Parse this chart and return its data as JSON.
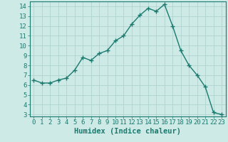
{
  "x": [
    0,
    1,
    2,
    3,
    4,
    5,
    6,
    7,
    8,
    9,
    10,
    11,
    12,
    13,
    14,
    15,
    16,
    17,
    18,
    19,
    20,
    21,
    22,
    23
  ],
  "y": [
    6.5,
    6.2,
    6.2,
    6.5,
    6.7,
    7.5,
    8.8,
    8.5,
    9.2,
    9.5,
    10.5,
    11.0,
    12.2,
    13.1,
    13.8,
    13.5,
    14.2,
    12.0,
    9.5,
    8.0,
    7.0,
    5.8,
    3.2,
    3.0
  ],
  "line_color": "#1a7a6e",
  "marker": "+",
  "marker_size": 4,
  "bg_color": "#cdeae7",
  "grid_color": "#b0d4d0",
  "xlabel": "Humidex (Indice chaleur)",
  "xlim": [
    -0.5,
    23.5
  ],
  "ylim": [
    2.8,
    14.5
  ],
  "yticks": [
    3,
    4,
    5,
    6,
    7,
    8,
    9,
    10,
    11,
    12,
    13,
    14
  ],
  "xticks": [
    0,
    1,
    2,
    3,
    4,
    5,
    6,
    7,
    8,
    9,
    10,
    11,
    12,
    13,
    14,
    15,
    16,
    17,
    18,
    19,
    20,
    21,
    22,
    23
  ],
  "xlabel_fontsize": 7.5,
  "tick_fontsize": 6.5,
  "line_width": 1.0,
  "marker_lw": 1.0
}
